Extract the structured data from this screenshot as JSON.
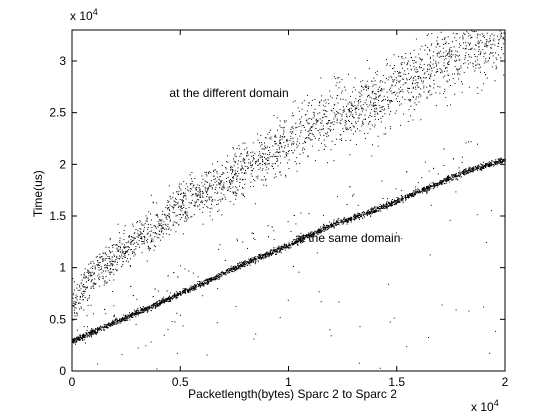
{
  "chart_data": {
    "type": "scatter",
    "title": "",
    "xlabel": "Packetlength(bytes) Sparc 2 to Sparc 2",
    "ylabel": "Time(us)",
    "xlim": [
      0,
      20000
    ],
    "ylim": [
      0,
      33000
    ],
    "x_multiplier_label": "x 10",
    "x_multiplier_exp": "4",
    "y_multiplier_label": "x 10",
    "y_multiplier_exp": "4",
    "x_ticks": [
      {
        "value": 0,
        "label": "0"
      },
      {
        "value": 5000,
        "label": "0.5"
      },
      {
        "value": 10000,
        "label": "1"
      },
      {
        "value": 15000,
        "label": "1.5"
      },
      {
        "value": 20000,
        "label": "2"
      }
    ],
    "y_ticks": [
      {
        "value": 0,
        "label": "0"
      },
      {
        "value": 5000,
        "label": "0.5"
      },
      {
        "value": 10000,
        "label": "1"
      },
      {
        "value": 15000,
        "label": "1.5"
      },
      {
        "value": 20000,
        "label": "2"
      },
      {
        "value": 25000,
        "label": "2.5"
      },
      {
        "value": 30000,
        "label": "3"
      }
    ],
    "grid": false,
    "marker_color": "#000000",
    "annotations": [
      {
        "text": "at the different domain",
        "x": 4500,
        "y": 26500
      },
      {
        "text": "at the same domain",
        "x": 10300,
        "y": 12500
      }
    ],
    "series": [
      {
        "name": "at the different domain",
        "trend": [
          [
            0,
            6500
          ],
          [
            1000,
            9500
          ],
          [
            2000,
            11000
          ],
          [
            3000,
            12800
          ],
          [
            4000,
            14200
          ],
          [
            5000,
            16000
          ],
          [
            6000,
            17000
          ],
          [
            7000,
            18200
          ],
          [
            8000,
            19500
          ],
          [
            9000,
            20800
          ],
          [
            10000,
            22500
          ],
          [
            11000,
            23500
          ],
          [
            12000,
            24500
          ],
          [
            13000,
            25500
          ],
          [
            14000,
            26000
          ],
          [
            15000,
            27500
          ],
          [
            16000,
            28500
          ],
          [
            17000,
            29800
          ],
          [
            18000,
            30800
          ],
          [
            19000,
            31800
          ],
          [
            20000,
            32500
          ]
        ],
        "spread": 1500,
        "points": 2400
      },
      {
        "name": "at the same domain",
        "trend": [
          [
            0,
            2900
          ],
          [
            2000,
            4800
          ],
          [
            4000,
            6600
          ],
          [
            6000,
            8500
          ],
          [
            8000,
            10500
          ],
          [
            10000,
            12200
          ],
          [
            12000,
            14200
          ],
          [
            14000,
            15600
          ],
          [
            16000,
            17400
          ],
          [
            18000,
            19200
          ],
          [
            20000,
            20500
          ]
        ],
        "spread": 150,
        "points": 3400
      }
    ]
  }
}
